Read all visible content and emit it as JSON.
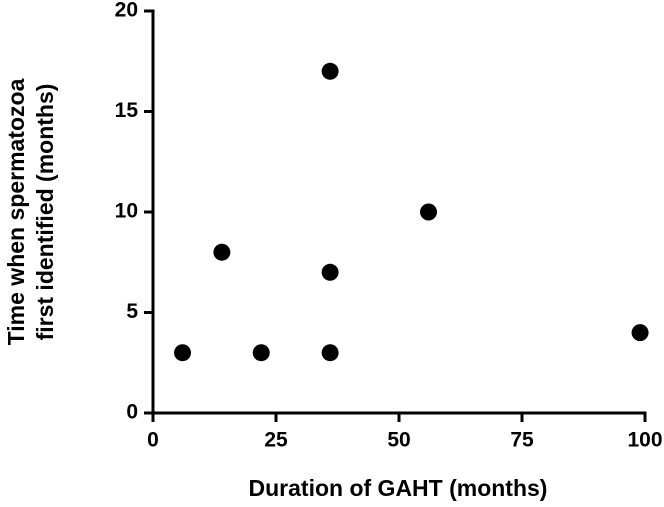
{
  "chart_data": {
    "type": "scatter",
    "xlabel": "Duration of GAHT (months)",
    "ylabel": [
      "Time when spermatozoa",
      "first identified (months)"
    ],
    "x": [
      6,
      14,
      22,
      36,
      36,
      36,
      56,
      99
    ],
    "values": [
      3,
      8,
      3,
      17,
      7,
      3,
      10,
      4
    ],
    "color": "#000000",
    "xlim": [
      0,
      100
    ],
    "xticks": [
      0,
      25,
      50,
      75,
      100
    ],
    "ylim": [
      0,
      20
    ],
    "yticks": [
      0,
      5,
      10,
      15,
      20
    ],
    "grid": false
  }
}
